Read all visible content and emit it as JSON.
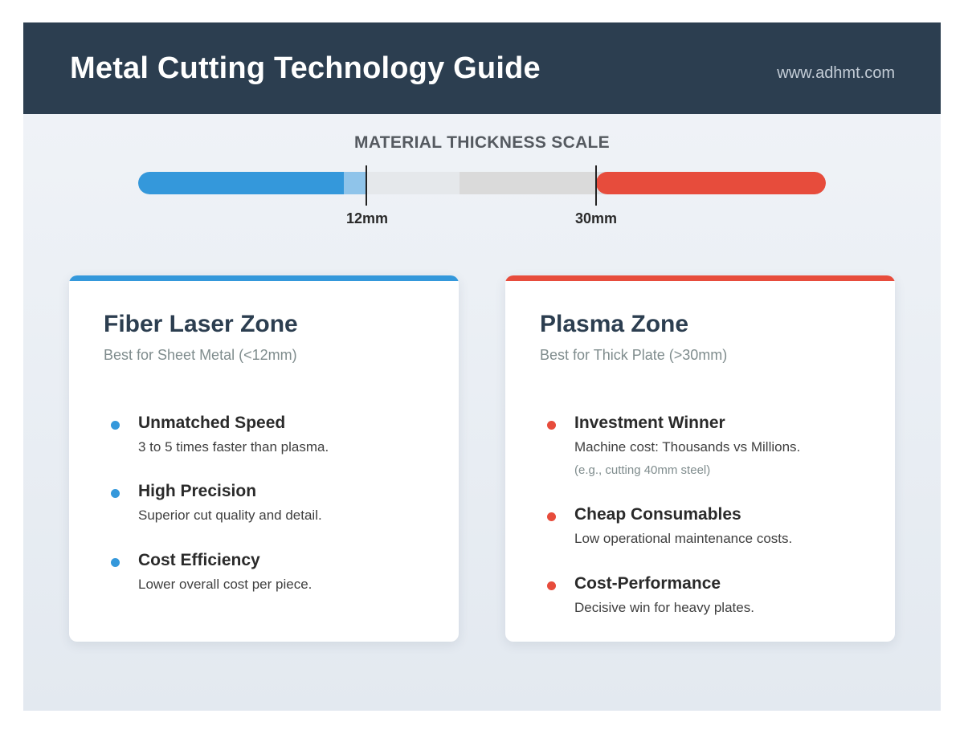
{
  "header": {
    "title": "Metal Cutting Technology Guide",
    "url": "www.adhmt.com"
  },
  "scale": {
    "title": "MATERIAL THICKNESS SCALE",
    "markers": [
      {
        "label": "12mm",
        "value": 12
      },
      {
        "label": "30mm",
        "value": 30
      }
    ],
    "colors": {
      "fiber": "#3498db",
      "plasma": "#e74c3c",
      "neutral": "#dadada"
    }
  },
  "cards": [
    {
      "id": "fiber",
      "title": "Fiber Laser Zone",
      "subtitle": "Best for Sheet Metal (<12mm)",
      "accent": "#3498db",
      "items": [
        {
          "title": "Unmatched Speed",
          "desc": "3 to 5 times faster than plasma.",
          "note": ""
        },
        {
          "title": "High Precision",
          "desc": "Superior cut quality and detail.",
          "note": ""
        },
        {
          "title": "Cost Efficiency",
          "desc": "Lower overall cost per piece.",
          "note": ""
        }
      ]
    },
    {
      "id": "plasma",
      "title": "Plasma Zone",
      "subtitle": "Best for Thick Plate (>30mm)",
      "accent": "#e74c3c",
      "items": [
        {
          "title": "Investment Winner",
          "desc": "Machine cost: Thousands vs Millions.",
          "note": "(e.g., cutting 40mm steel)"
        },
        {
          "title": "Cheap Consumables",
          "desc": "Low operational maintenance costs.",
          "note": ""
        },
        {
          "title": "Cost-Performance",
          "desc": "Decisive win for heavy plates.",
          "note": ""
        }
      ]
    }
  ]
}
